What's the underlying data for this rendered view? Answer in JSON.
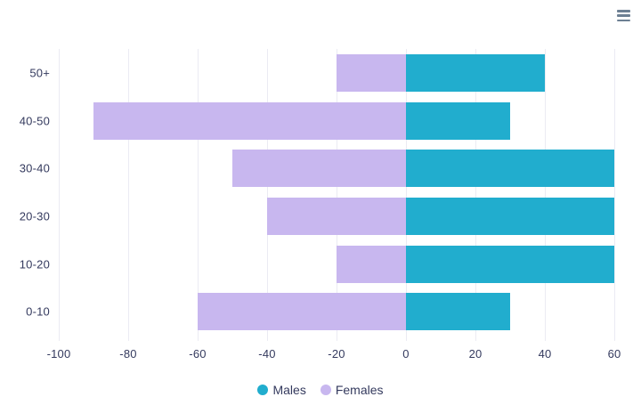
{
  "chart_data": {
    "type": "bar",
    "orientation": "horizontal",
    "title": "",
    "xlabel": "",
    "ylabel": "",
    "categories": [
      "50+",
      "40-50",
      "30-40",
      "20-30",
      "10-20",
      "0-10"
    ],
    "series": [
      {
        "name": "Males",
        "color": "#21adce",
        "values": [
          40,
          30,
          60,
          60,
          60,
          30
        ]
      },
      {
        "name": "Females",
        "color": "#c8b7ef",
        "values": [
          -20,
          -90,
          -50,
          -40,
          -20,
          -60
        ]
      }
    ],
    "x_ticks": [
      -100,
      -80,
      -60,
      -40,
      -20,
      0,
      20,
      40,
      60
    ],
    "xlim": [
      -100,
      60
    ],
    "grid": "vertical-only",
    "legend_position": "bottom"
  },
  "toolbar": {
    "menu_icon": "hamburger-menu-icon"
  },
  "colors": {
    "axis_text": "#343a5e",
    "gridline": "#ebebf3",
    "menu_icon": "#6d8093",
    "background": "#ffffff"
  }
}
